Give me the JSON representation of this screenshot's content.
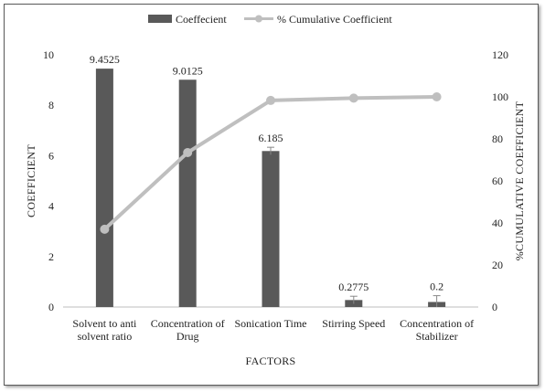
{
  "chart_data": {
    "type": "bar",
    "categories": [
      [
        "Solvent to anti",
        "solvent ratio"
      ],
      [
        "Concentration of",
        "Drug"
      ],
      [
        "Sonication Time"
      ],
      [
        "Stirring Speed"
      ],
      [
        "Concentration of",
        "Stabilizer"
      ]
    ],
    "series": [
      {
        "name": "Coeffecient",
        "type": "bar",
        "axis": "left",
        "values": [
          9.4525,
          9.0125,
          6.185,
          0.2775,
          0.2
        ],
        "labels": [
          "9.4525",
          "9.0125",
          "6.185",
          "0.2775",
          "0.2"
        ],
        "error": [
          0,
          0,
          0.15,
          0.15,
          0.25
        ],
        "color": "#595959"
      },
      {
        "name": "% Cumulative Coefficient",
        "type": "line",
        "axis": "right",
        "values": [
          37.0,
          73.5,
          98.3,
          99.4,
          100.0
        ],
        "color": "#bfbfbf"
      }
    ],
    "xlabel": "FACTORS",
    "ylabel": "COEFFICIENT",
    "y2label": "%CUMULATIVE COEFFICIENT",
    "ylim": [
      0,
      10
    ],
    "y2lim": [
      0,
      120
    ],
    "yticks": [
      0,
      2,
      4,
      6,
      8,
      10
    ],
    "y2ticks": [
      0,
      20,
      40,
      60,
      80,
      100,
      120
    ],
    "grid": false,
    "legend_position": "top"
  }
}
